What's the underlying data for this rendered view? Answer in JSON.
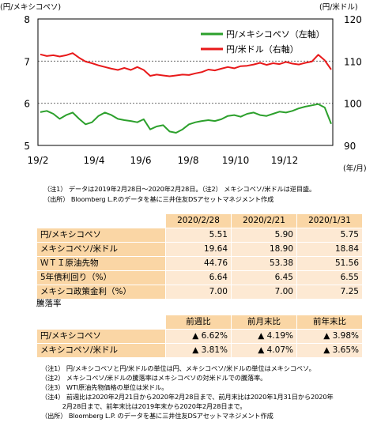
{
  "chart_data": {
    "type": "line",
    "left_axis_unit": "(円/メキシコペソ)",
    "right_axis_unit": "(円/米ドル)",
    "x_unit": "(年/月)",
    "x_ticks": [
      "19/2",
      "19/4",
      "19/6",
      "19/8",
      "19/10",
      "19/12"
    ],
    "y_left": {
      "ticks": [
        "5",
        "6",
        "7",
        "8"
      ],
      "min": 5,
      "max": 8
    },
    "y_right": {
      "ticks": [
        "90",
        "100",
        "110",
        "120"
      ],
      "min": 90,
      "max": 120
    },
    "gridlines": [
      6,
      7
    ],
    "legend_position": "top-right",
    "series": [
      {
        "name": "円/メキシコペソ（左軸）",
        "axis": "left",
        "color": "#2ca02c",
        "values": [
          5.79,
          5.82,
          5.75,
          5.63,
          5.72,
          5.78,
          5.63,
          5.5,
          5.55,
          5.7,
          5.78,
          5.72,
          5.63,
          5.6,
          5.58,
          5.55,
          5.62,
          5.38,
          5.45,
          5.48,
          5.33,
          5.3,
          5.38,
          5.5,
          5.55,
          5.58,
          5.6,
          5.58,
          5.62,
          5.7,
          5.72,
          5.68,
          5.75,
          5.78,
          5.72,
          5.7,
          5.75,
          5.8,
          5.78,
          5.82,
          5.88,
          5.92,
          5.95,
          5.98,
          5.9,
          5.51
        ]
      },
      {
        "name": "円/米ドル（右軸）",
        "axis": "right",
        "color": "#e8191a",
        "values": [
          111.6,
          111.2,
          111.4,
          111.1,
          111.4,
          111.9,
          110.8,
          109.9,
          109.5,
          109.0,
          108.6,
          108.2,
          107.9,
          108.4,
          107.9,
          108.6,
          107.9,
          106.5,
          106.8,
          106.6,
          106.4,
          106.6,
          106.8,
          106.7,
          107.1,
          107.4,
          108.0,
          107.8,
          108.2,
          108.6,
          108.3,
          108.8,
          108.9,
          109.2,
          109.6,
          109.1,
          109.5,
          109.3,
          109.8,
          109.4,
          109.2,
          109.6,
          109.9,
          111.5,
          110.2,
          108.0
        ]
      }
    ]
  },
  "chart_notes": [
    "（注1） データは2019年2月28日～2020年2月28日。（注2） メキシコペソ/米ドルは逆目盛。",
    "（出所） Bloomberg L.P.のデータを基に三井住友DSアセットマネジメント作成"
  ],
  "table": {
    "columns": [
      "2020/2/28",
      "2020/2/21",
      "2020/1/31"
    ],
    "rows": [
      {
        "label": "円/メキシコペソ",
        "values": [
          "5.51",
          "5.90",
          "5.75"
        ]
      },
      {
        "label": "メキシコペソ/米ドル",
        "values": [
          "19.64",
          "18.90",
          "18.84"
        ]
      },
      {
        "label": "ＷＴＩ原油先物",
        "values": [
          "44.76",
          "53.38",
          "51.56"
        ]
      },
      {
        "label": "5年債利回り（%）",
        "values": [
          "6.64",
          "6.45",
          "6.55"
        ]
      },
      {
        "label": "メキシコ政策金利（%）",
        "values": [
          "7.00",
          "7.00",
          "7.25"
        ]
      }
    ]
  },
  "change_table": {
    "title": "騰落率",
    "columns": [
      "前週比",
      "前月末比",
      "前年末比"
    ],
    "rows": [
      {
        "label": "円/メキシコペソ",
        "values": [
          "▲ 6.62%",
          "▲ 4.19%",
          "▲ 3.98%"
        ]
      },
      {
        "label": "メキシコペソ/米ドル",
        "values": [
          "▲ 3.81%",
          "▲ 4.07%",
          "▲ 3.65%"
        ]
      }
    ]
  },
  "table_notes": [
    "（注1） 円/メキシコペソと円/米ドルの単位は円、メキシコペソ/米ドルの単位はメキシコペソ。",
    "（注2） メキシコペソ/米ドルの騰落率はメキシコペソの対米ドルでの騰落率。",
    "（注3） WTI原油先物価格の単位は米ドル。",
    "（注4） 前週比は2020年2月21日から2020年2月28日まで、前月末比は2020年1月31日から2020年",
    "　　　 2月28日まで、前年末比は2019年末から2020年2月28日まで。",
    "（出所） Bloomberg L.P. のデータを基に三井住友DSアセットマネジメント作成"
  ]
}
